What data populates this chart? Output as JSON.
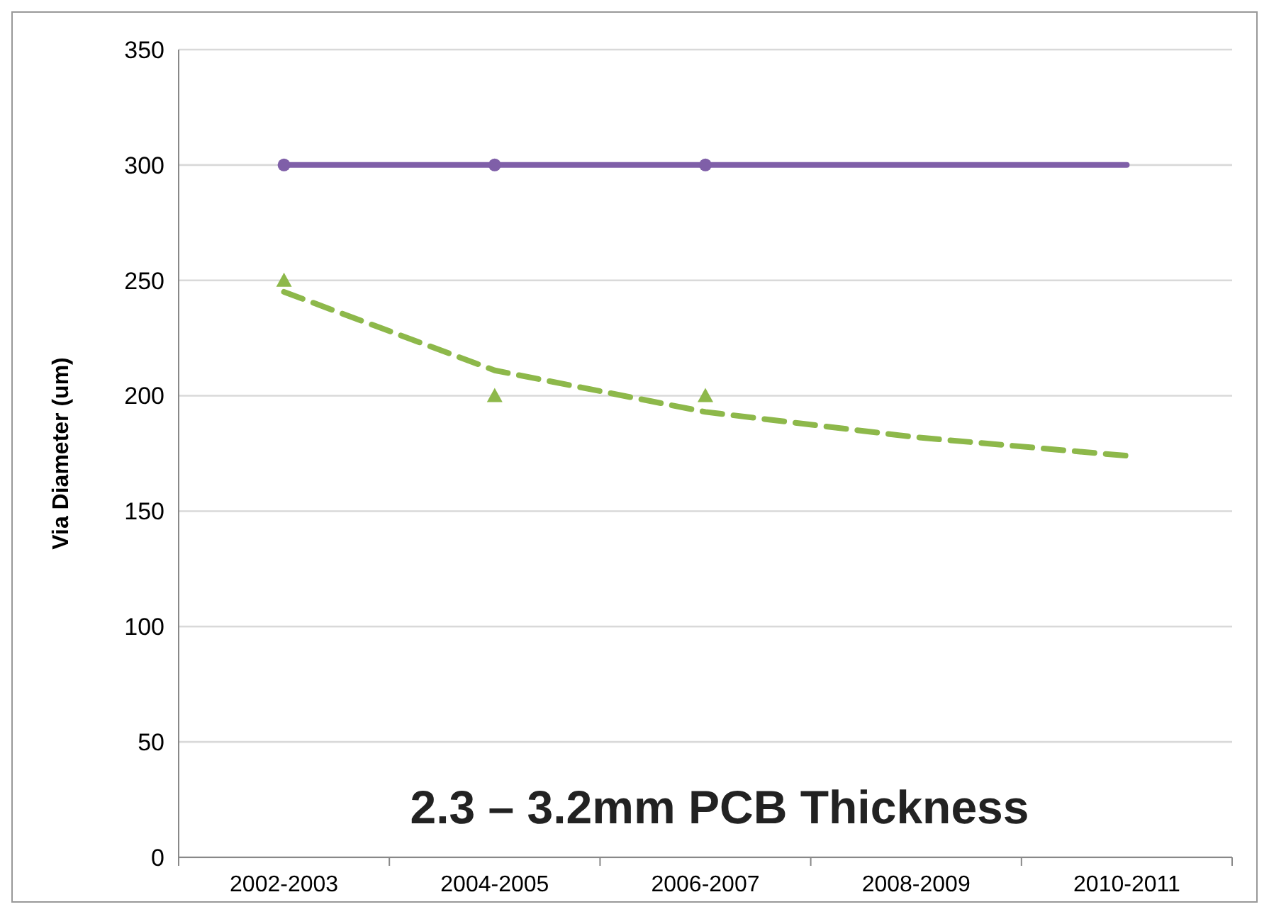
{
  "chart_data": {
    "type": "line",
    "title": "2.3 – 3.2mm PCB Thickness",
    "ylabel": "Via Diameter (um)",
    "categories": [
      "2002-2003",
      "2004-2005",
      "2006-2007",
      "2008-2009",
      "2010-2011"
    ],
    "series": [
      {
        "color": "#7f5fa8",
        "values": [
          300,
          300,
          300,
          300,
          300
        ],
        "line_style": "solid"
      },
      {
        "color": "#8db84a",
        "values": [
          245,
          211,
          193,
          182,
          174
        ],
        "line_style": "dashed"
      },
      {
        "type": "scatter",
        "color": "#7f5fa8",
        "values": [
          300,
          300,
          300,
          null,
          null
        ],
        "marker": "circle"
      },
      {
        "type": "scatter",
        "color": "#8db84a",
        "values": [
          250,
          200,
          200,
          null,
          null
        ],
        "marker": "triangle"
      }
    ],
    "ylim": [
      0,
      350
    ],
    "yticks": [
      0,
      50,
      100,
      150,
      200,
      250,
      300,
      350
    ],
    "grid": "y"
  }
}
